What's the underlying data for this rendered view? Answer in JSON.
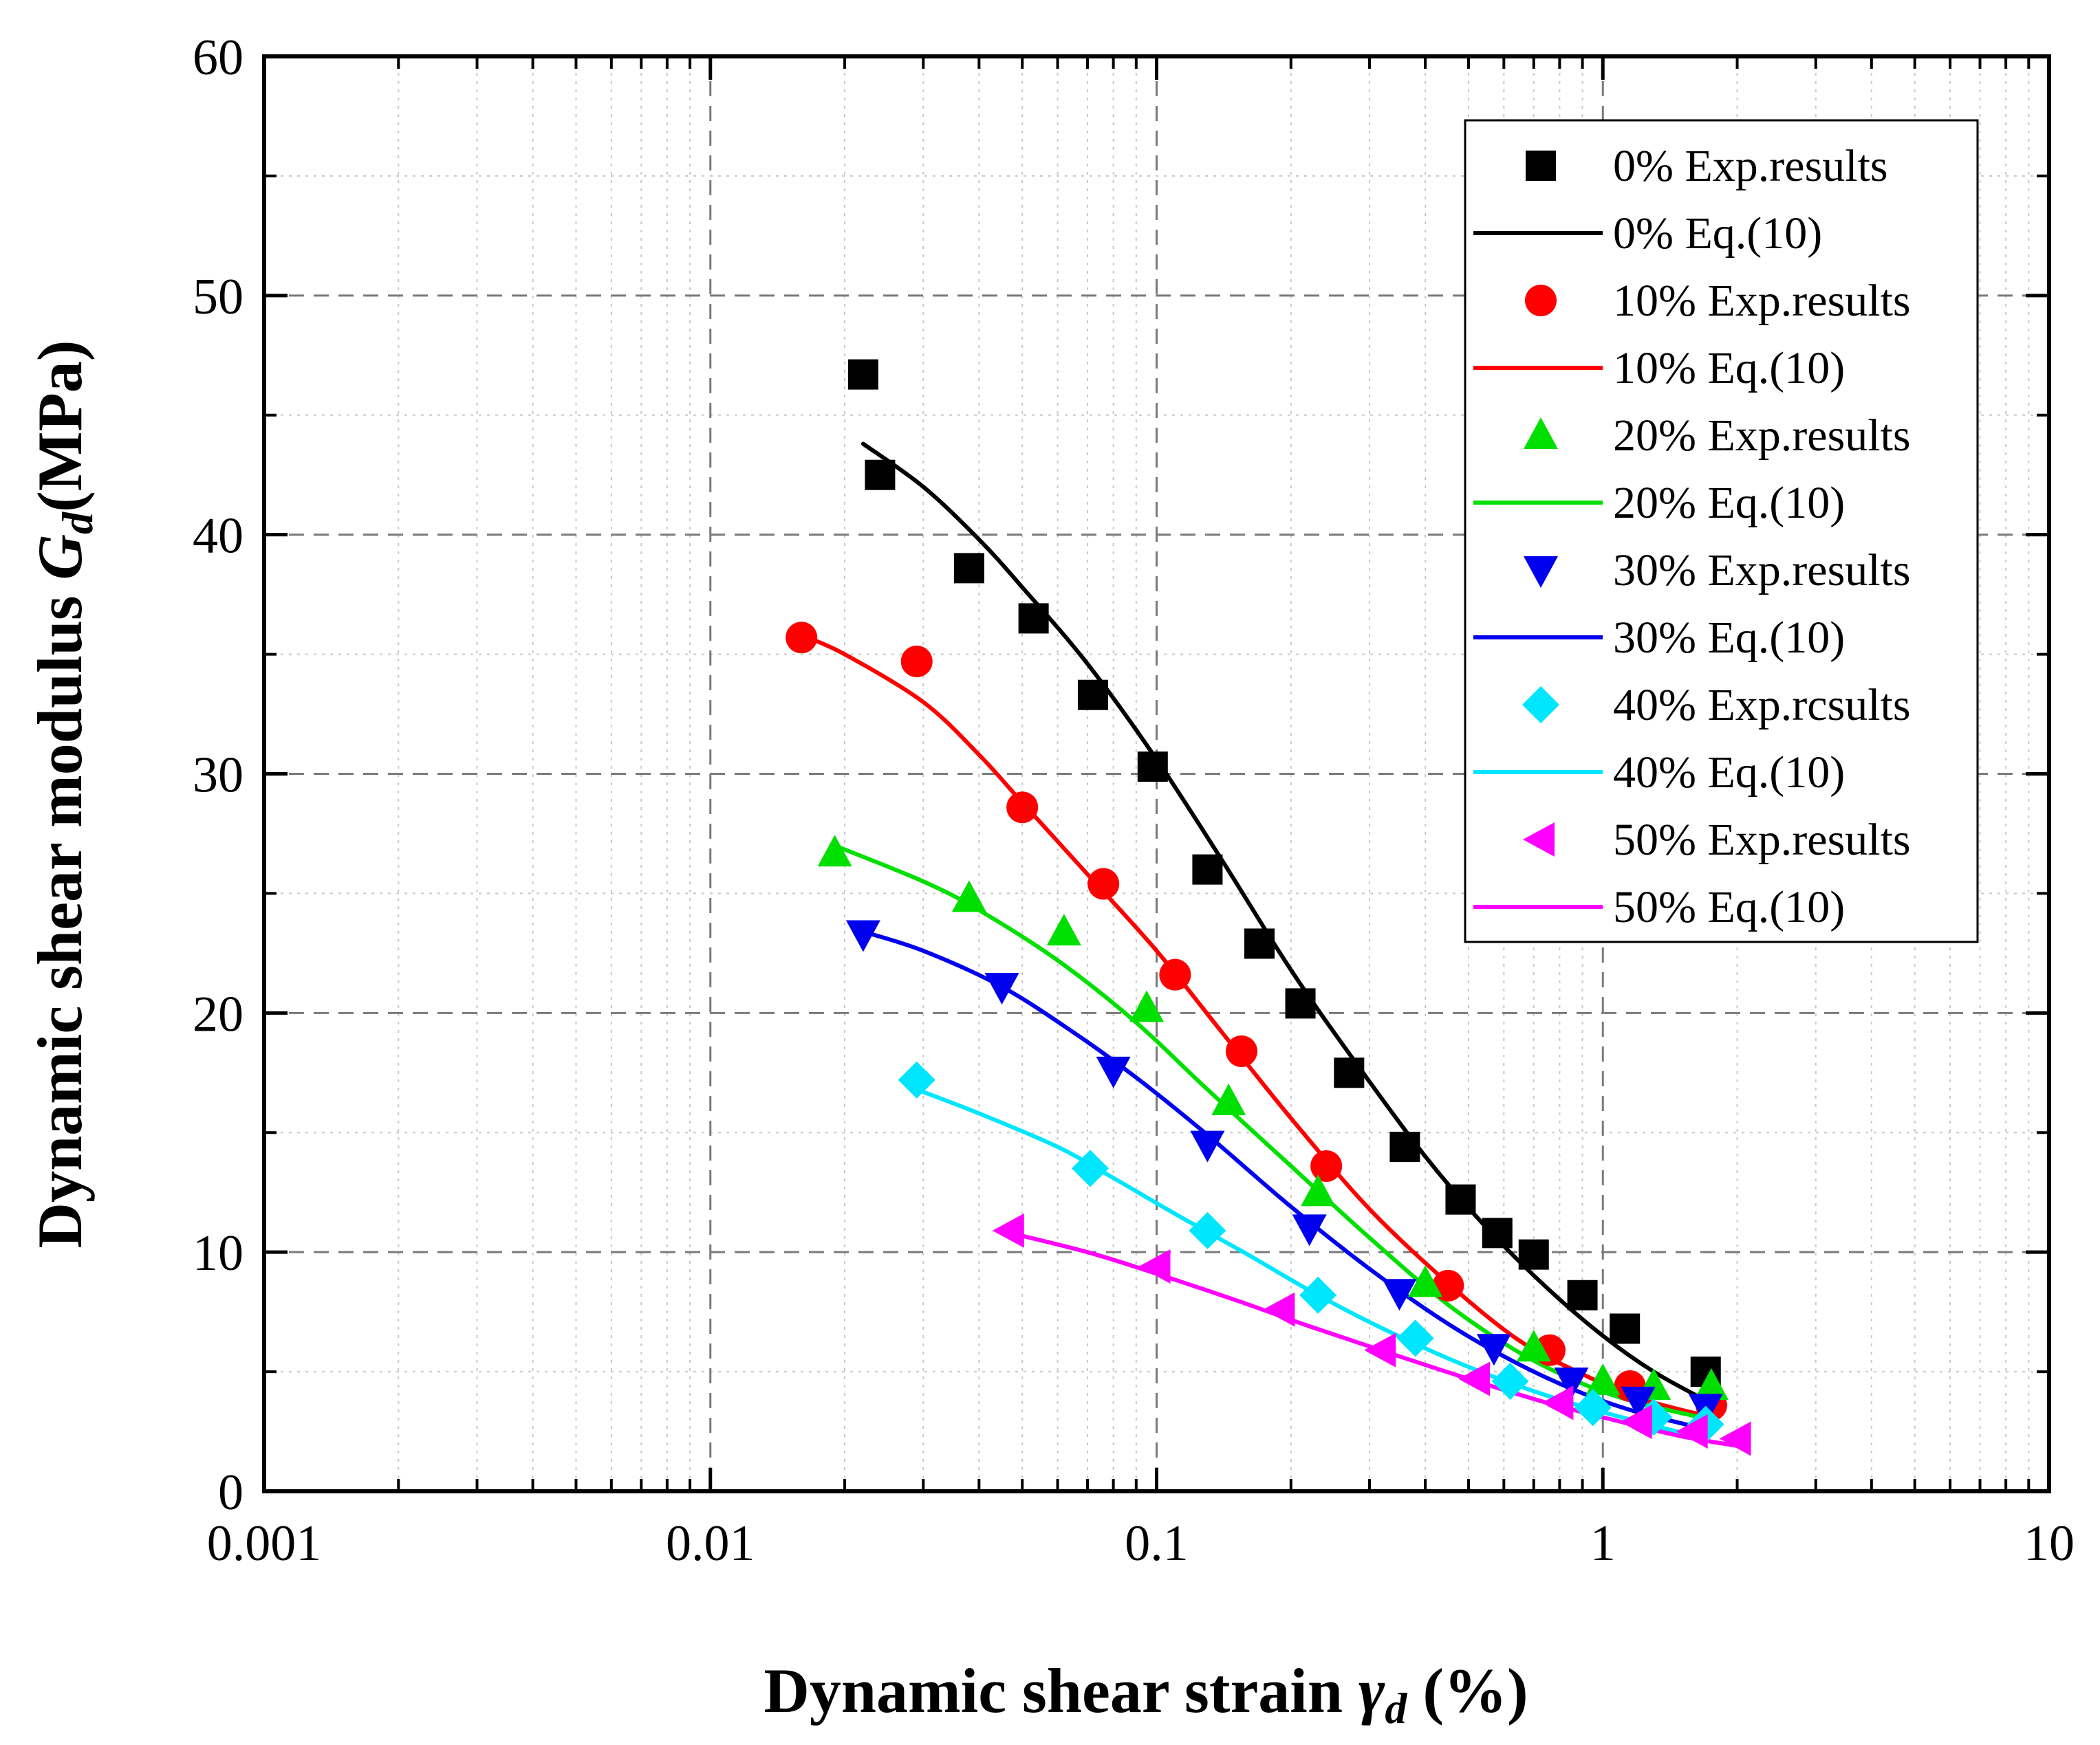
{
  "chart_data": {
    "type": "scatter",
    "title": "",
    "xlabel": {
      "main": "Dynamic shear strain ",
      "symbol": "γ",
      "sub": "d",
      "unit": " (%)"
    },
    "ylabel": {
      "main": "Dynamic shear modulus ",
      "symbol": "G",
      "sub": "d",
      "unit": "(MPa)"
    },
    "xscale": "log",
    "xlim": [
      0.001,
      10
    ],
    "ylim": [
      0,
      60
    ],
    "x_ticks": [
      0.001,
      0.01,
      0.1,
      1,
      10
    ],
    "x_tick_labels": [
      "0.001",
      "0.01",
      "0.1",
      "1",
      "10"
    ],
    "y_ticks": [
      0,
      10,
      20,
      30,
      40,
      50,
      60
    ],
    "y_tick_labels": [
      "0",
      "10",
      "20",
      "30",
      "40",
      "50",
      "60"
    ],
    "grid": true,
    "legend_position": "top-right",
    "series": [
      {
        "name": "0%",
        "exp_label": "0% Exp.results",
        "fit_label": "0% Eq.(10)",
        "color": "#000000",
        "marker": "square",
        "exp": {
          "x": [
            0.022,
            0.024,
            0.038,
            0.053,
            0.072,
            0.098,
            0.13,
            0.17,
            0.21,
            0.27,
            0.36,
            0.48,
            0.58,
            0.7,
            0.9,
            1.12,
            1.7
          ],
          "y": [
            46.7,
            42.5,
            38.6,
            36.5,
            33.3,
            30.3,
            26.0,
            22.9,
            20.4,
            17.5,
            14.4,
            12.2,
            10.8,
            9.9,
            8.2,
            6.8,
            5.0
          ]
        },
        "fit": {
          "x": [
            0.022,
            0.03,
            0.04,
            0.05,
            0.07,
            0.1,
            0.14,
            0.2,
            0.28,
            0.4,
            0.55,
            0.75,
            1.0,
            1.3,
            1.7
          ],
          "y": [
            43.8,
            42.0,
            39.8,
            37.8,
            34.6,
            30.6,
            26.4,
            21.8,
            17.9,
            14.0,
            11.0,
            8.5,
            6.5,
            5.0,
            3.8
          ]
        }
      },
      {
        "name": "10%",
        "exp_label": "10% Exp.results",
        "fit_label": "10% Eq.(10)",
        "color": "#ff0000",
        "marker": "circle",
        "exp": {
          "x": [
            0.016,
            0.029,
            0.05,
            0.076,
            0.11,
            0.155,
            0.24,
            0.45,
            0.76,
            1.15,
            1.75
          ],
          "y": [
            35.7,
            34.7,
            28.6,
            25.4,
            21.6,
            18.4,
            13.6,
            8.6,
            5.9,
            4.4,
            3.6
          ]
        },
        "fit": {
          "x": [
            0.016,
            0.02,
            0.03,
            0.04,
            0.05,
            0.07,
            0.1,
            0.14,
            0.2,
            0.3,
            0.45,
            0.65,
            0.9,
            1.2,
            1.75
          ],
          "y": [
            35.8,
            35.0,
            33.0,
            30.8,
            28.8,
            25.8,
            22.6,
            19.2,
            15.6,
            11.8,
            8.7,
            6.3,
            4.9,
            3.9,
            3.1
          ]
        }
      },
      {
        "name": "20%",
        "exp_label": "20% Exp.results",
        "fit_label": "20% Eq.(10)",
        "color": "#00e000",
        "marker": "triangle-up",
        "exp": {
          "x": [
            0.019,
            0.038,
            0.062,
            0.095,
            0.145,
            0.23,
            0.4,
            0.7,
            1.0,
            1.3,
            1.75
          ],
          "y": [
            26.7,
            24.8,
            23.4,
            20.2,
            16.3,
            12.5,
            8.7,
            6.0,
            4.6,
            4.4,
            4.4
          ]
        },
        "fit": {
          "x": [
            0.019,
            0.03,
            0.04,
            0.06,
            0.09,
            0.13,
            0.2,
            0.3,
            0.45,
            0.65,
            0.9,
            1.2,
            1.75
          ],
          "y": [
            27.0,
            25.5,
            24.3,
            22.2,
            19.6,
            16.8,
            13.6,
            10.6,
            7.8,
            5.8,
            4.5,
            3.7,
            3.0
          ]
        }
      },
      {
        "name": "30%",
        "exp_label": "30% Exp.results",
        "fit_label": "30% Eq.(10)",
        "color": "#0000ee",
        "marker": "triangle-down",
        "exp": {
          "x": [
            0.022,
            0.045,
            0.08,
            0.13,
            0.22,
            0.35,
            0.57,
            0.85,
            1.2,
            1.7
          ],
          "y": [
            23.3,
            21.1,
            17.6,
            14.5,
            11.0,
            8.3,
            6.0,
            4.6,
            3.8,
            3.5
          ]
        },
        "fit": {
          "x": [
            0.022,
            0.03,
            0.045,
            0.065,
            0.09,
            0.13,
            0.2,
            0.3,
            0.45,
            0.65,
            0.9,
            1.2,
            1.7
          ],
          "y": [
            23.4,
            22.6,
            21.1,
            19.2,
            17.3,
            14.9,
            11.9,
            9.3,
            7.0,
            5.3,
            4.1,
            3.3,
            2.6
          ]
        }
      },
      {
        "name": "40%",
        "exp_label": "40% Exp.rcsults",
        "fit_label": "40% Eq.(10)",
        "color": "#00e6ff",
        "marker": "diamond",
        "exp": {
          "x": [
            0.029,
            0.071,
            0.13,
            0.23,
            0.38,
            0.62,
            0.95,
            1.3,
            1.7
          ],
          "y": [
            17.2,
            13.5,
            10.9,
            8.2,
            6.4,
            4.6,
            3.5,
            3.1,
            2.8
          ]
        },
        "fit": {
          "x": [
            0.029,
            0.04,
            0.06,
            0.08,
            0.11,
            0.16,
            0.23,
            0.33,
            0.5,
            0.75,
            1.1,
            1.7
          ],
          "y": [
            16.8,
            15.8,
            14.4,
            13.1,
            11.6,
            9.9,
            8.2,
            6.7,
            5.2,
            4.0,
            3.1,
            2.2
          ]
        }
      },
      {
        "name": "50%",
        "exp_label": "50% Exp.results",
        "fit_label": "50% Eq.(10)",
        "color": "#ff00ff",
        "marker": "triangle-left",
        "exp": {
          "x": [
            0.047,
            0.1,
            0.19,
            0.32,
            0.52,
            0.8,
            1.2,
            1.6,
            2.0
          ],
          "y": [
            10.9,
            9.4,
            7.6,
            5.9,
            4.7,
            3.7,
            2.9,
            2.5,
            2.2
          ]
        },
        "fit": {
          "x": [
            0.047,
            0.07,
            0.1,
            0.15,
            0.22,
            0.33,
            0.5,
            0.75,
            1.1,
            1.5,
            2.0
          ],
          "y": [
            10.8,
            10.0,
            9.1,
            8.0,
            6.9,
            5.8,
            4.7,
            3.7,
            2.9,
            2.3,
            1.9
          ]
        }
      }
    ]
  }
}
